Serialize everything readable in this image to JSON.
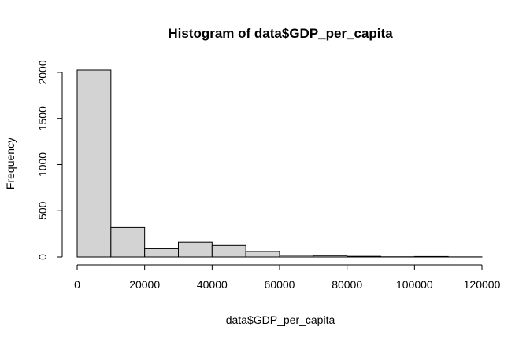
{
  "chart_data": {
    "type": "bar",
    "title": "Histogram of data$GDP_per_capita",
    "xlabel": "data$GDP_per_capita",
    "ylabel": "Frequency",
    "bins": [
      {
        "start": 0,
        "end": 10000,
        "count": 2025
      },
      {
        "start": 10000,
        "end": 20000,
        "count": 320
      },
      {
        "start": 20000,
        "end": 30000,
        "count": 90
      },
      {
        "start": 30000,
        "end": 40000,
        "count": 160
      },
      {
        "start": 40000,
        "end": 50000,
        "count": 125
      },
      {
        "start": 50000,
        "end": 60000,
        "count": 60
      },
      {
        "start": 60000,
        "end": 70000,
        "count": 18
      },
      {
        "start": 70000,
        "end": 80000,
        "count": 15
      },
      {
        "start": 80000,
        "end": 90000,
        "count": 7
      },
      {
        "start": 90000,
        "end": 100000,
        "count": 2
      },
      {
        "start": 100000,
        "end": 110000,
        "count": 5
      },
      {
        "start": 110000,
        "end": 120000,
        "count": 1
      }
    ],
    "xlim": [
      0,
      120000
    ],
    "ylim": [
      0,
      2025
    ],
    "x_ticks": [
      0,
      20000,
      40000,
      60000,
      80000,
      100000,
      120000
    ],
    "y_ticks": [
      0,
      500,
      1000,
      1500,
      2000
    ],
    "grid": false,
    "legend": "none",
    "bar_fill": "#d3d3d3",
    "bar_stroke": "#000000"
  }
}
